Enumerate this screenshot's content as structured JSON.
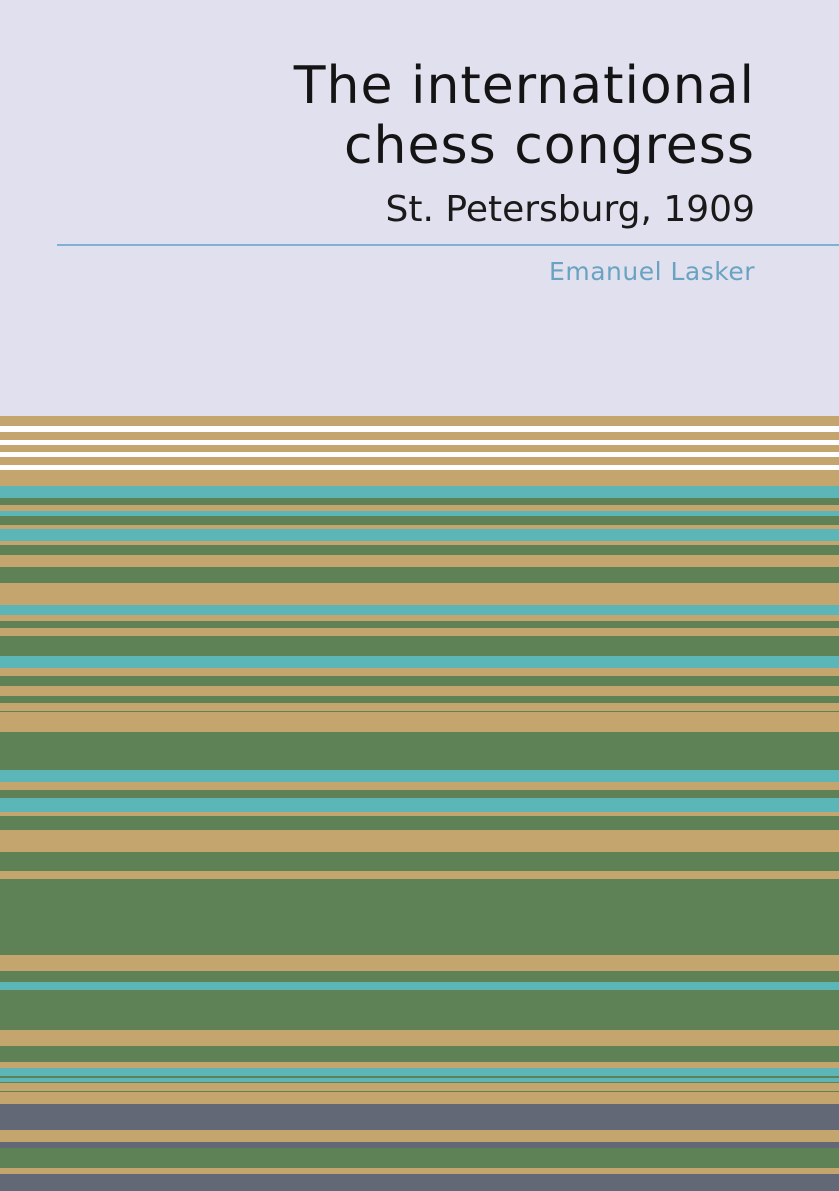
{
  "cover": {
    "title_lines": [
      "The international",
      "chess congress"
    ],
    "subtitle": "St. Petersburg, 1909",
    "author": "Emanuel Lasker"
  }
}
